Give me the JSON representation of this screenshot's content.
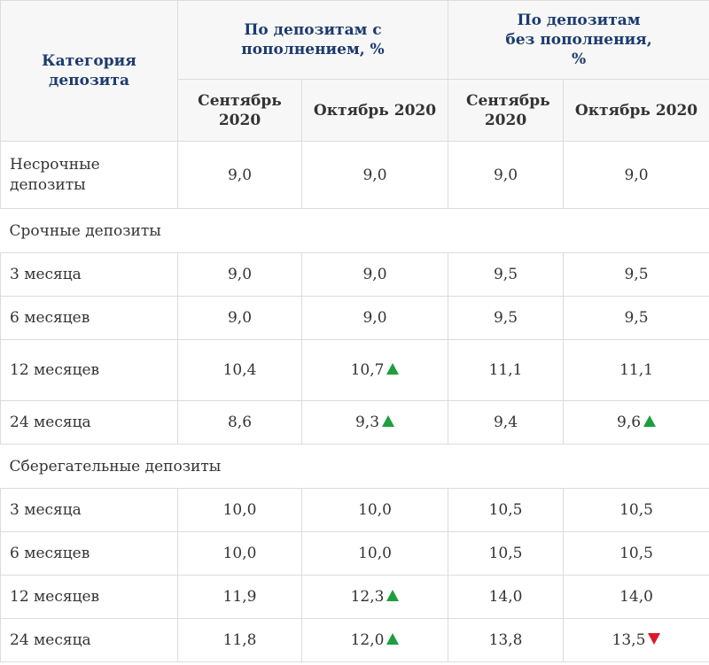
{
  "header": {
    "category": "Категория депозита",
    "group1": "По депозитам с пополнением, %",
    "group2": "По депозитам без пополнения, %",
    "sep": "Сентябрь 2020",
    "oct": "Октябрь 2020"
  },
  "rows": {
    "r1": {
      "label": "Несрочные депозиты",
      "v1": "9,0",
      "v2": "9,0",
      "v3": "9,0",
      "v4": "9,0"
    },
    "sec1": "Срочные депозиты",
    "r2": {
      "label": "3 месяца",
      "v1": "9,0",
      "v2": "9,0",
      "v3": "9,5",
      "v4": "9,5"
    },
    "r3": {
      "label": "6 месяцев",
      "v1": "9,0",
      "v2": "9,0",
      "v3": "9,5",
      "v4": "9,5"
    },
    "r4": {
      "label": "12 месяцев",
      "v1": "10,4",
      "v2": "10,7",
      "v3": "11,1",
      "v4": "11,1"
    },
    "r5": {
      "label": "24 месяца",
      "v1": "8,6",
      "v2": "9,3",
      "v3": "9,4",
      "v4": "9,6"
    },
    "sec2": "Сберегательные депозиты",
    "r6": {
      "label": "3 месяца",
      "v1": "10,0",
      "v2": "10,0",
      "v3": "10,5",
      "v4": "10,5"
    },
    "r7": {
      "label": "6 месяцев",
      "v1": "10,0",
      "v2": "10,0",
      "v3": "10,5",
      "v4": "10,5"
    },
    "r8": {
      "label": "12 месяцев",
      "v1": "11,9",
      "v2": "12,3",
      "v3": "14,0",
      "v4": "14,0"
    },
    "r9": {
      "label": "24 месяца",
      "v1": "11,8",
      "v2": "12,0",
      "v3": "13,8",
      "v4": "13,5"
    }
  },
  "colors": {
    "up": "#1e9e3e",
    "down": "#e0162b",
    "title": "#1b3b6f"
  },
  "icons": {
    "up": "triangle-up-icon",
    "down": "triangle-down-icon"
  }
}
